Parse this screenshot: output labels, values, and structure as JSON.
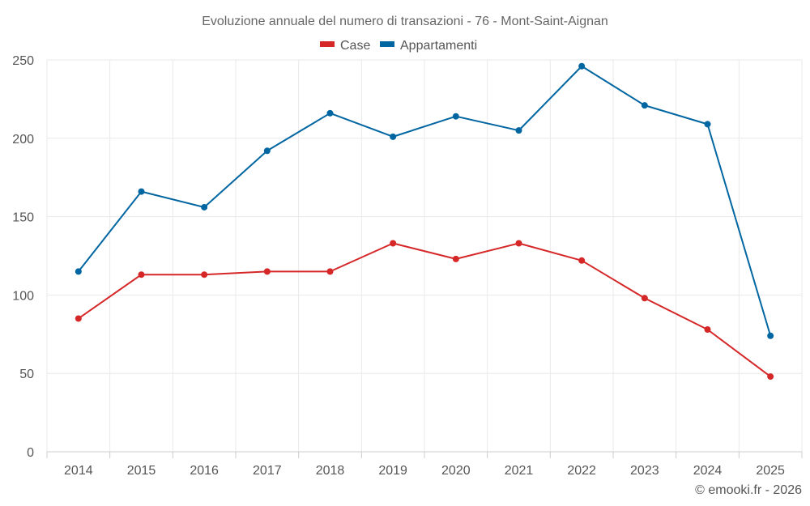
{
  "chart_data": {
    "type": "line",
    "title": "Evoluzione annuale del numero di transazioni - 76 - Mont-Saint-Aignan",
    "categories": [
      "2014",
      "2015",
      "2016",
      "2017",
      "2018",
      "2019",
      "2020",
      "2021",
      "2022",
      "2023",
      "2024",
      "2025"
    ],
    "series": [
      {
        "name": "Case",
        "color": "#d62728",
        "values": [
          85,
          113,
          113,
          115,
          115,
          133,
          123,
          133,
          122,
          98,
          78,
          48
        ]
      },
      {
        "name": "Appartamenti",
        "color": "#0066a1",
        "values": [
          115,
          166,
          156,
          192,
          216,
          201,
          214,
          205,
          246,
          221,
          209,
          74
        ]
      }
    ],
    "ylim": [
      0,
      250
    ],
    "yticks": [
      "0",
      "50",
      "100",
      "150",
      "200",
      "250"
    ],
    "xlabel": "",
    "ylabel": "",
    "grid": true,
    "legend": "top-center"
  },
  "credit": "© emooki.fr - 2026"
}
